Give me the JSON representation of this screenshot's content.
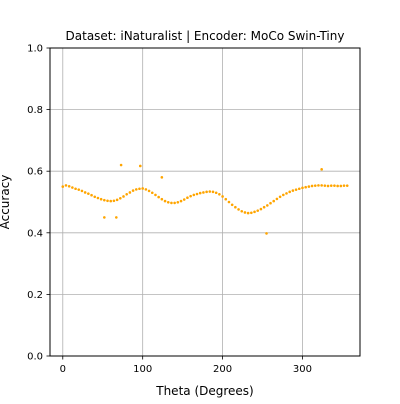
{
  "chart_data": {
    "type": "scatter",
    "title": "Dataset: iNaturalist | Encoder: MoCo Swin-Tiny",
    "xlabel": "Theta (Degrees)",
    "ylabel": "Accuracy",
    "xlim": [
      -16,
      372
    ],
    "ylim": [
      0.0,
      1.0
    ],
    "xticks": [
      0,
      100,
      200,
      300
    ],
    "yticks": [
      0.0,
      0.2,
      0.4,
      0.6,
      0.8,
      1.0
    ],
    "xtick_labels": [
      "0",
      "100",
      "200",
      "300"
    ],
    "ytick_labels": [
      "0.0",
      "0.2",
      "0.4",
      "0.6",
      "0.8",
      "1.0"
    ],
    "grid": true,
    "point_color": "#FFA500",
    "series": [
      {
        "x": [
          0,
          4,
          8,
          12,
          16,
          20,
          24,
          28,
          32,
          36,
          40,
          44,
          48,
          52,
          56,
          60,
          64,
          68,
          72,
          76,
          80,
          84,
          88,
          92,
          96,
          100,
          104,
          108,
          112,
          116,
          120,
          124,
          128,
          132,
          136,
          140,
          144,
          148,
          152,
          156,
          160,
          164,
          168,
          172,
          176,
          180,
          184,
          188,
          192,
          196,
          200,
          204,
          208,
          212,
          216,
          220,
          224,
          228,
          232,
          236,
          240,
          244,
          248,
          252,
          256,
          260,
          264,
          268,
          272,
          276,
          280,
          284,
          288,
          292,
          296,
          300,
          304,
          308,
          312,
          316,
          320,
          324,
          328,
          332,
          336,
          340,
          344,
          348,
          352,
          356,
          52,
          67,
          73,
          97,
          124,
          255,
          324
        ],
        "y": [
          0.55,
          0.554,
          0.551,
          0.547,
          0.543,
          0.54,
          0.536,
          0.531,
          0.527,
          0.522,
          0.517,
          0.513,
          0.509,
          0.506,
          0.504,
          0.503,
          0.504,
          0.507,
          0.512,
          0.518,
          0.525,
          0.531,
          0.537,
          0.541,
          0.543,
          0.544,
          0.541,
          0.536,
          0.53,
          0.523,
          0.516,
          0.509,
          0.503,
          0.499,
          0.497,
          0.497,
          0.499,
          0.503,
          0.508,
          0.514,
          0.519,
          0.523,
          0.526,
          0.529,
          0.531,
          0.533,
          0.534,
          0.533,
          0.53,
          0.525,
          0.518,
          0.509,
          0.5,
          0.491,
          0.483,
          0.476,
          0.47,
          0.466,
          0.464,
          0.465,
          0.468,
          0.472,
          0.477,
          0.483,
          0.489,
          0.496,
          0.503,
          0.51,
          0.517,
          0.523,
          0.528,
          0.533,
          0.537,
          0.54,
          0.543,
          0.546,
          0.548,
          0.55,
          0.552,
          0.553,
          0.554,
          0.554,
          0.553,
          0.552,
          0.553,
          0.553,
          0.552,
          0.552,
          0.553,
          0.553,
          0.45,
          0.45,
          0.62,
          0.617,
          0.58,
          0.398,
          0.606
        ]
      }
    ]
  }
}
